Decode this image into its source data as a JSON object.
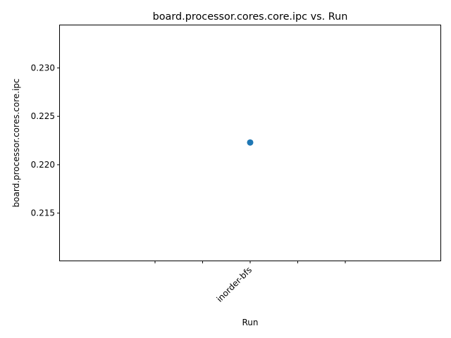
{
  "chart_data": {
    "type": "scatter",
    "title": "board.processor.cores.core.ipc vs. Run",
    "xlabel": "Run",
    "ylabel": "board.processor.cores.core.ipc",
    "categories": [
      "inorder-bfs"
    ],
    "x_ticks": [
      "",
      "",
      "inorder-bfs",
      "",
      ""
    ],
    "x_range": [
      -0.2,
      0.2
    ],
    "x_tick_values": [
      -0.1,
      -0.05,
      0,
      0.05,
      0.1
    ],
    "series": [
      {
        "values": [
          0.2223
        ],
        "color": "#1f77b4"
      }
    ],
    "ylim": [
      0.2101,
      0.2344
    ],
    "y_ticks": [
      0.215,
      0.22,
      0.225,
      0.23
    ],
    "y_tick_labels": [
      "0.215",
      "0.220",
      "0.225",
      "0.230"
    ],
    "grid": false,
    "legend": "none"
  }
}
